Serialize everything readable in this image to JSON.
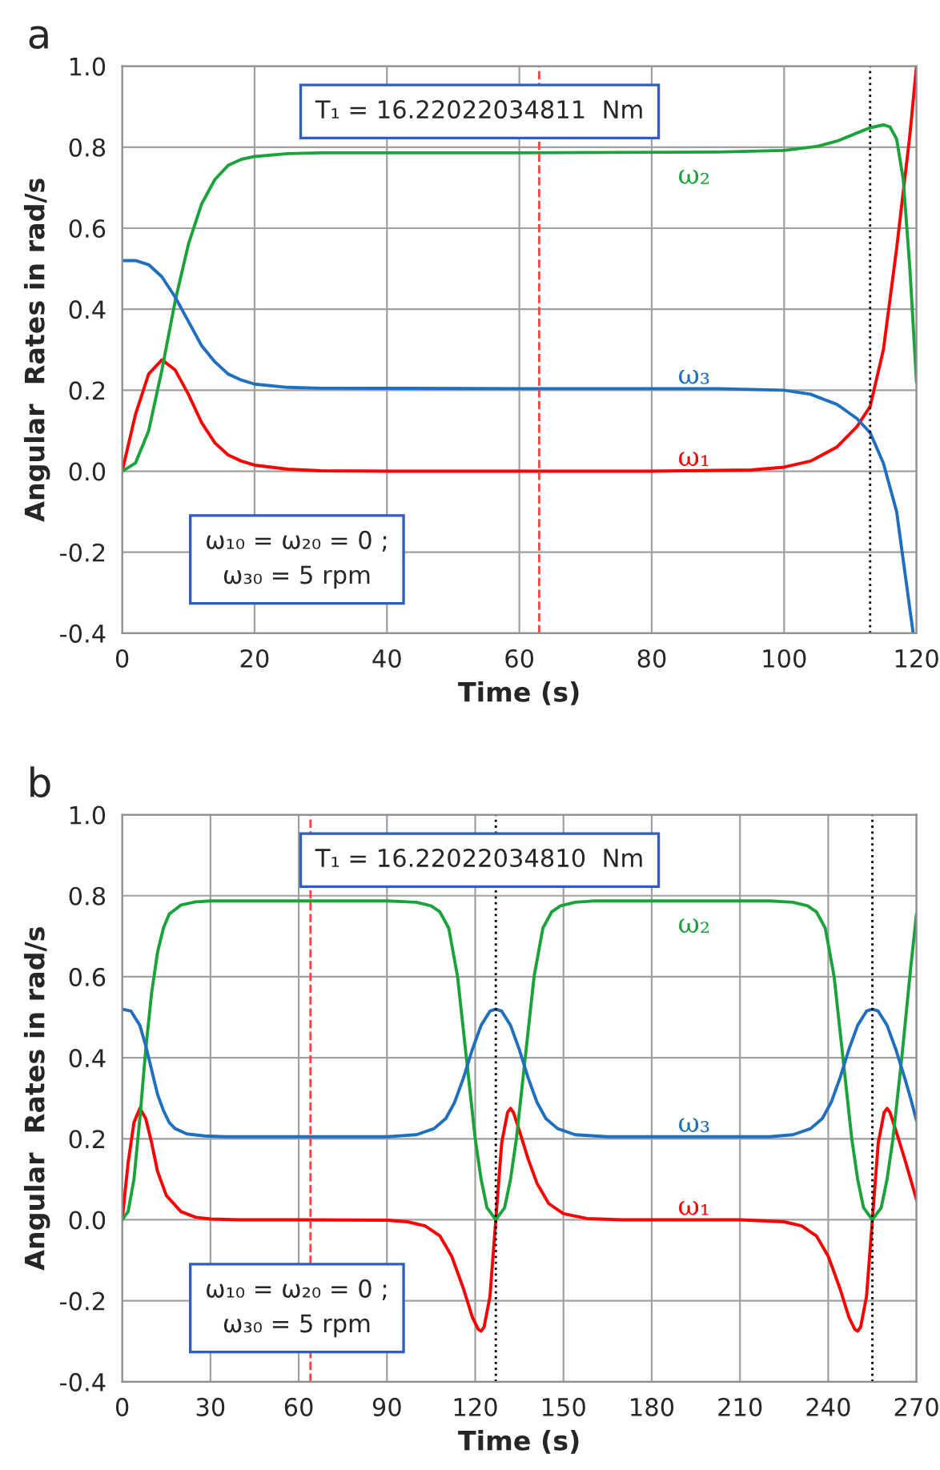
{
  "chart_data": [
    {
      "type": "line",
      "title": "a",
      "xlabel": "Time (s)",
      "ylabel": "Angular  Rates in rad/s",
      "xlim": [
        0,
        120
      ],
      "xticks": [
        0,
        20,
        40,
        60,
        80,
        100,
        120
      ],
      "ylim": [
        -0.4,
        1.0
      ],
      "yticks": [
        {
          "value": -0.4,
          "label": "-0.4"
        },
        {
          "value": -0.2,
          "label": "-0.2"
        },
        {
          "value": 0.0,
          "label": "0.0"
        },
        {
          "value": 0.2,
          "label": "0.2"
        },
        {
          "value": 0.4,
          "label": "0.4"
        },
        {
          "value": 0.6,
          "label": "0.6"
        },
        {
          "value": 0.8,
          "label": "0.8"
        },
        {
          "value": 1.0,
          "label": "1.0"
        }
      ],
      "grid": true,
      "legend": false,
      "marker": "none",
      "line_style": "solid",
      "annotations": [
        "T₁ = 16.22022034811  Nm",
        "ω₁₀ = ω₂₀ = 0 ;\nω₃₀ = 5 rpm"
      ],
      "ref_lines": [
        {
          "axis": "x",
          "value": 63,
          "color": "#ff4040",
          "line_style": "dashed"
        },
        {
          "axis": "x",
          "value": 113,
          "color": "#000000",
          "line_style": "dotted"
        }
      ],
      "series": [
        {
          "name": "ω₁",
          "color": "#ff0000",
          "x": [
            0,
            2,
            4,
            6,
            8,
            10,
            12,
            14,
            16,
            18,
            20,
            25,
            30,
            40,
            60,
            80,
            95,
            100,
            104,
            108,
            111,
            113,
            115,
            117,
            119,
            120
          ],
          "values": [
            0,
            0.14,
            0.24,
            0.275,
            0.25,
            0.19,
            0.12,
            0.07,
            0.04,
            0.025,
            0.015,
            0.005,
            0.001,
            0,
            0,
            0,
            0.003,
            0.01,
            0.025,
            0.06,
            0.11,
            0.16,
            0.3,
            0.55,
            0.83,
            1.0
          ]
        },
        {
          "name": "ω₂",
          "color": "#1aa33a",
          "x": [
            0,
            2,
            4,
            6,
            8,
            10,
            12,
            14,
            16,
            18,
            20,
            25,
            30,
            60,
            90,
            100,
            105,
            108,
            111,
            113,
            115,
            116,
            117,
            118,
            119,
            120
          ],
          "values": [
            0,
            0.02,
            0.1,
            0.25,
            0.42,
            0.56,
            0.66,
            0.72,
            0.755,
            0.77,
            0.777,
            0.784,
            0.786,
            0.786,
            0.788,
            0.792,
            0.802,
            0.815,
            0.835,
            0.848,
            0.855,
            0.85,
            0.82,
            0.72,
            0.5,
            0.22
          ]
        },
        {
          "name": "ω₃",
          "color": "#1f6fc0",
          "x": [
            0,
            2,
            4,
            6,
            8,
            10,
            12,
            14,
            16,
            18,
            20,
            25,
            30,
            60,
            90,
            100,
            104,
            108,
            111,
            113,
            115,
            117,
            119.5
          ],
          "values": [
            0.52,
            0.52,
            0.51,
            0.48,
            0.43,
            0.37,
            0.31,
            0.27,
            0.24,
            0.225,
            0.215,
            0.207,
            0.205,
            0.204,
            0.204,
            0.2,
            0.19,
            0.165,
            0.13,
            0.095,
            0.02,
            -0.1,
            -0.4
          ]
        }
      ]
    },
    {
      "type": "line",
      "title": "b",
      "xlabel": "Time (s)",
      "ylabel": "Angular  Rates in rad/s",
      "xlim": [
        0,
        270
      ],
      "xticks": [
        0,
        30,
        60,
        90,
        120,
        150,
        180,
        210,
        240,
        270
      ],
      "ylim": [
        -0.4,
        1.0
      ],
      "yticks": [
        {
          "value": -0.4,
          "label": "-0.4"
        },
        {
          "value": -0.2,
          "label": "-0.2"
        },
        {
          "value": 0.0,
          "label": "0.0"
        },
        {
          "value": 0.2,
          "label": "0.2"
        },
        {
          "value": 0.4,
          "label": "0.4"
        },
        {
          "value": 0.6,
          "label": "0.6"
        },
        {
          "value": 0.8,
          "label": "0.8"
        },
        {
          "value": 1.0,
          "label": "1.0"
        }
      ],
      "grid": true,
      "legend": false,
      "marker": "none",
      "line_style": "solid",
      "annotations": [
        "T₁ = 16.22022034810  Nm",
        "ω₁₀ = ω₂₀ = 0 ;\nω₃₀ = 5 rpm"
      ],
      "ref_lines": [
        {
          "axis": "x",
          "value": 64,
          "color": "#ff4040",
          "line_style": "dashed"
        },
        {
          "axis": "x",
          "value": 127,
          "color": "#000000",
          "line_style": "dotted"
        },
        {
          "axis": "x",
          "value": 255,
          "color": "#000000",
          "line_style": "dotted"
        }
      ],
      "series": [
        {
          "name": "ω₁",
          "color": "#ff0000",
          "x": [
            0,
            2,
            4,
            6,
            8,
            10,
            12,
            15,
            20,
            25,
            30,
            40,
            60,
            90,
            97,
            103,
            108,
            112,
            116,
            119,
            121,
            122,
            123,
            125,
            127,
            129,
            131,
            132,
            133,
            135,
            138,
            141,
            145,
            150,
            158,
            170,
            210,
            225,
            231,
            236,
            240,
            244,
            247,
            249,
            250,
            251,
            253,
            255,
            257,
            259,
            260,
            261,
            263,
            266,
            270
          ],
          "values": [
            0,
            0.14,
            0.24,
            0.275,
            0.25,
            0.19,
            0.12,
            0.06,
            0.02,
            0.006,
            0.002,
            0,
            0,
            -0.001,
            -0.005,
            -0.015,
            -0.04,
            -0.09,
            -0.17,
            -0.24,
            -0.27,
            -0.275,
            -0.265,
            -0.19,
            0,
            0.19,
            0.265,
            0.275,
            0.265,
            0.22,
            0.15,
            0.09,
            0.04,
            0.015,
            0.003,
            0,
            0,
            -0.005,
            -0.015,
            -0.04,
            -0.09,
            -0.17,
            -0.24,
            -0.27,
            -0.275,
            -0.265,
            -0.19,
            0,
            0.19,
            0.265,
            0.275,
            0.265,
            0.22,
            0.15,
            0.05
          ]
        },
        {
          "name": "ω₂",
          "color": "#1aa33a",
          "x": [
            0,
            2,
            4,
            6,
            8,
            10,
            12,
            14,
            16,
            20,
            25,
            30,
            90,
            100,
            105,
            108,
            111,
            114,
            117,
            120,
            122,
            124,
            127,
            130,
            132,
            134,
            137,
            140,
            143,
            146,
            149,
            154,
            160,
            220,
            228,
            233,
            236,
            239,
            242,
            245,
            248,
            250,
            252,
            255,
            258,
            260,
            262,
            265,
            268,
            270
          ],
          "values": [
            0,
            0.02,
            0.1,
            0.25,
            0.42,
            0.56,
            0.66,
            0.72,
            0.755,
            0.777,
            0.785,
            0.787,
            0.787,
            0.784,
            0.775,
            0.76,
            0.72,
            0.6,
            0.4,
            0.2,
            0.1,
            0.03,
            0,
            0.03,
            0.1,
            0.2,
            0.4,
            0.6,
            0.72,
            0.76,
            0.775,
            0.784,
            0.787,
            0.787,
            0.784,
            0.775,
            0.76,
            0.72,
            0.6,
            0.4,
            0.2,
            0.1,
            0.03,
            0,
            0.03,
            0.1,
            0.2,
            0.4,
            0.62,
            0.755
          ]
        },
        {
          "name": "ω₃",
          "color": "#1f6fc0",
          "x": [
            0,
            3,
            6,
            8,
            10,
            12,
            14,
            16,
            18,
            22,
            28,
            35,
            90,
            100,
            106,
            110,
            113,
            116,
            119,
            122,
            125,
            127,
            129,
            132,
            135,
            138,
            141,
            144,
            148,
            154,
            165,
            220,
            228,
            234,
            238,
            241,
            244,
            247,
            250,
            253,
            255,
            257,
            260,
            263,
            266,
            268,
            270
          ],
          "values": [
            0.52,
            0.515,
            0.48,
            0.43,
            0.37,
            0.31,
            0.27,
            0.24,
            0.225,
            0.212,
            0.207,
            0.205,
            0.205,
            0.21,
            0.225,
            0.25,
            0.29,
            0.35,
            0.42,
            0.48,
            0.515,
            0.52,
            0.515,
            0.48,
            0.42,
            0.35,
            0.29,
            0.25,
            0.225,
            0.21,
            0.205,
            0.205,
            0.21,
            0.225,
            0.25,
            0.29,
            0.35,
            0.42,
            0.48,
            0.515,
            0.52,
            0.515,
            0.48,
            0.42,
            0.35,
            0.3,
            0.245
          ]
        }
      ]
    }
  ]
}
